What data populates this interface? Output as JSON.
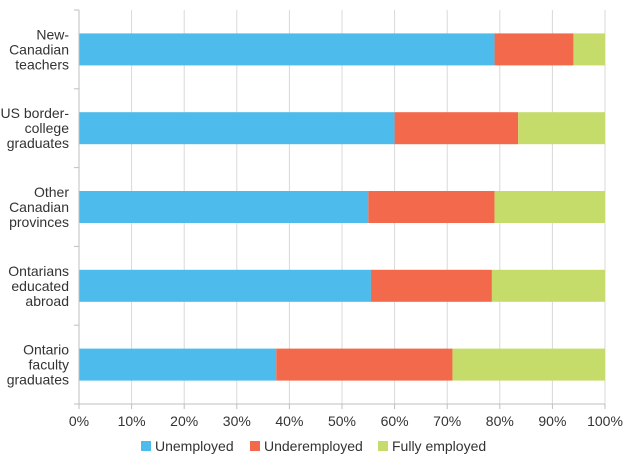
{
  "chart_data": {
    "type": "bar",
    "orientation": "horizontal",
    "stacked": true,
    "categories": [
      [
        "New-",
        "Canadian",
        "teachers"
      ],
      [
        "US border-",
        "college",
        "graduates"
      ],
      [
        "Other",
        "Canadian",
        "provinces"
      ],
      [
        "Ontarians",
        "educated",
        "abroad"
      ],
      [
        "Ontario",
        "faculty",
        "graduates"
      ]
    ],
    "series": [
      {
        "name": "Unemployed",
        "color": "#4dbbeb",
        "values": [
          79,
          60,
          55,
          55.5,
          37.5
        ]
      },
      {
        "name": "Underemployed",
        "color": "#f26a4b",
        "values": [
          15,
          23.5,
          24,
          23,
          33.5
        ]
      },
      {
        "name": "Fully employed",
        "color": "#c5dc6a",
        "values": [
          6,
          16.5,
          21,
          21.5,
          29
        ]
      }
    ],
    "xlim": [
      0,
      100
    ],
    "xticks": [
      "0%",
      "10%",
      "20%",
      "30%",
      "40%",
      "50%",
      "60%",
      "70%",
      "80%",
      "90%",
      "100%"
    ],
    "grid": true,
    "legend_position": "bottom",
    "title": "",
    "xlabel": "",
    "ylabel": ""
  }
}
